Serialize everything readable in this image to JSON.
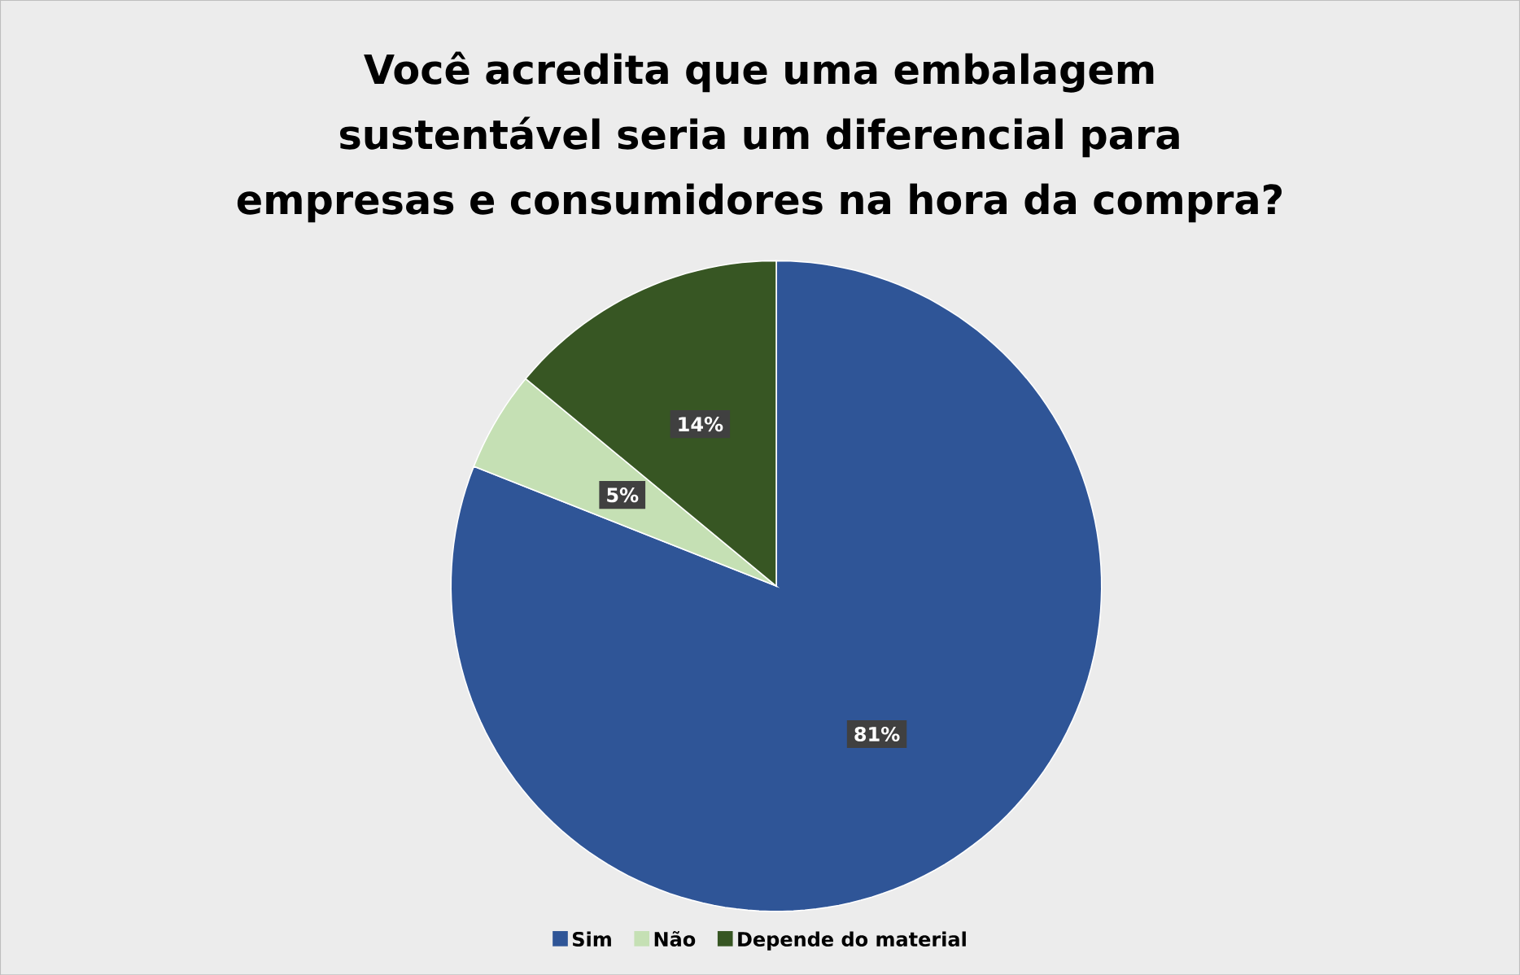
{
  "chart_data": {
    "type": "pie",
    "title": "Você acredita que uma embalagem sustentável seria um diferencial para empresas e consumidores na hora da compra?",
    "categories": [
      "Sim",
      "Não",
      "Depende do material"
    ],
    "values": [
      81,
      5,
      14
    ],
    "value_labels": [
      "81%",
      "5%",
      "14%"
    ],
    "colors": [
      "#2f5597",
      "#c5e0b4",
      "#375623"
    ],
    "legend": "bottom"
  }
}
